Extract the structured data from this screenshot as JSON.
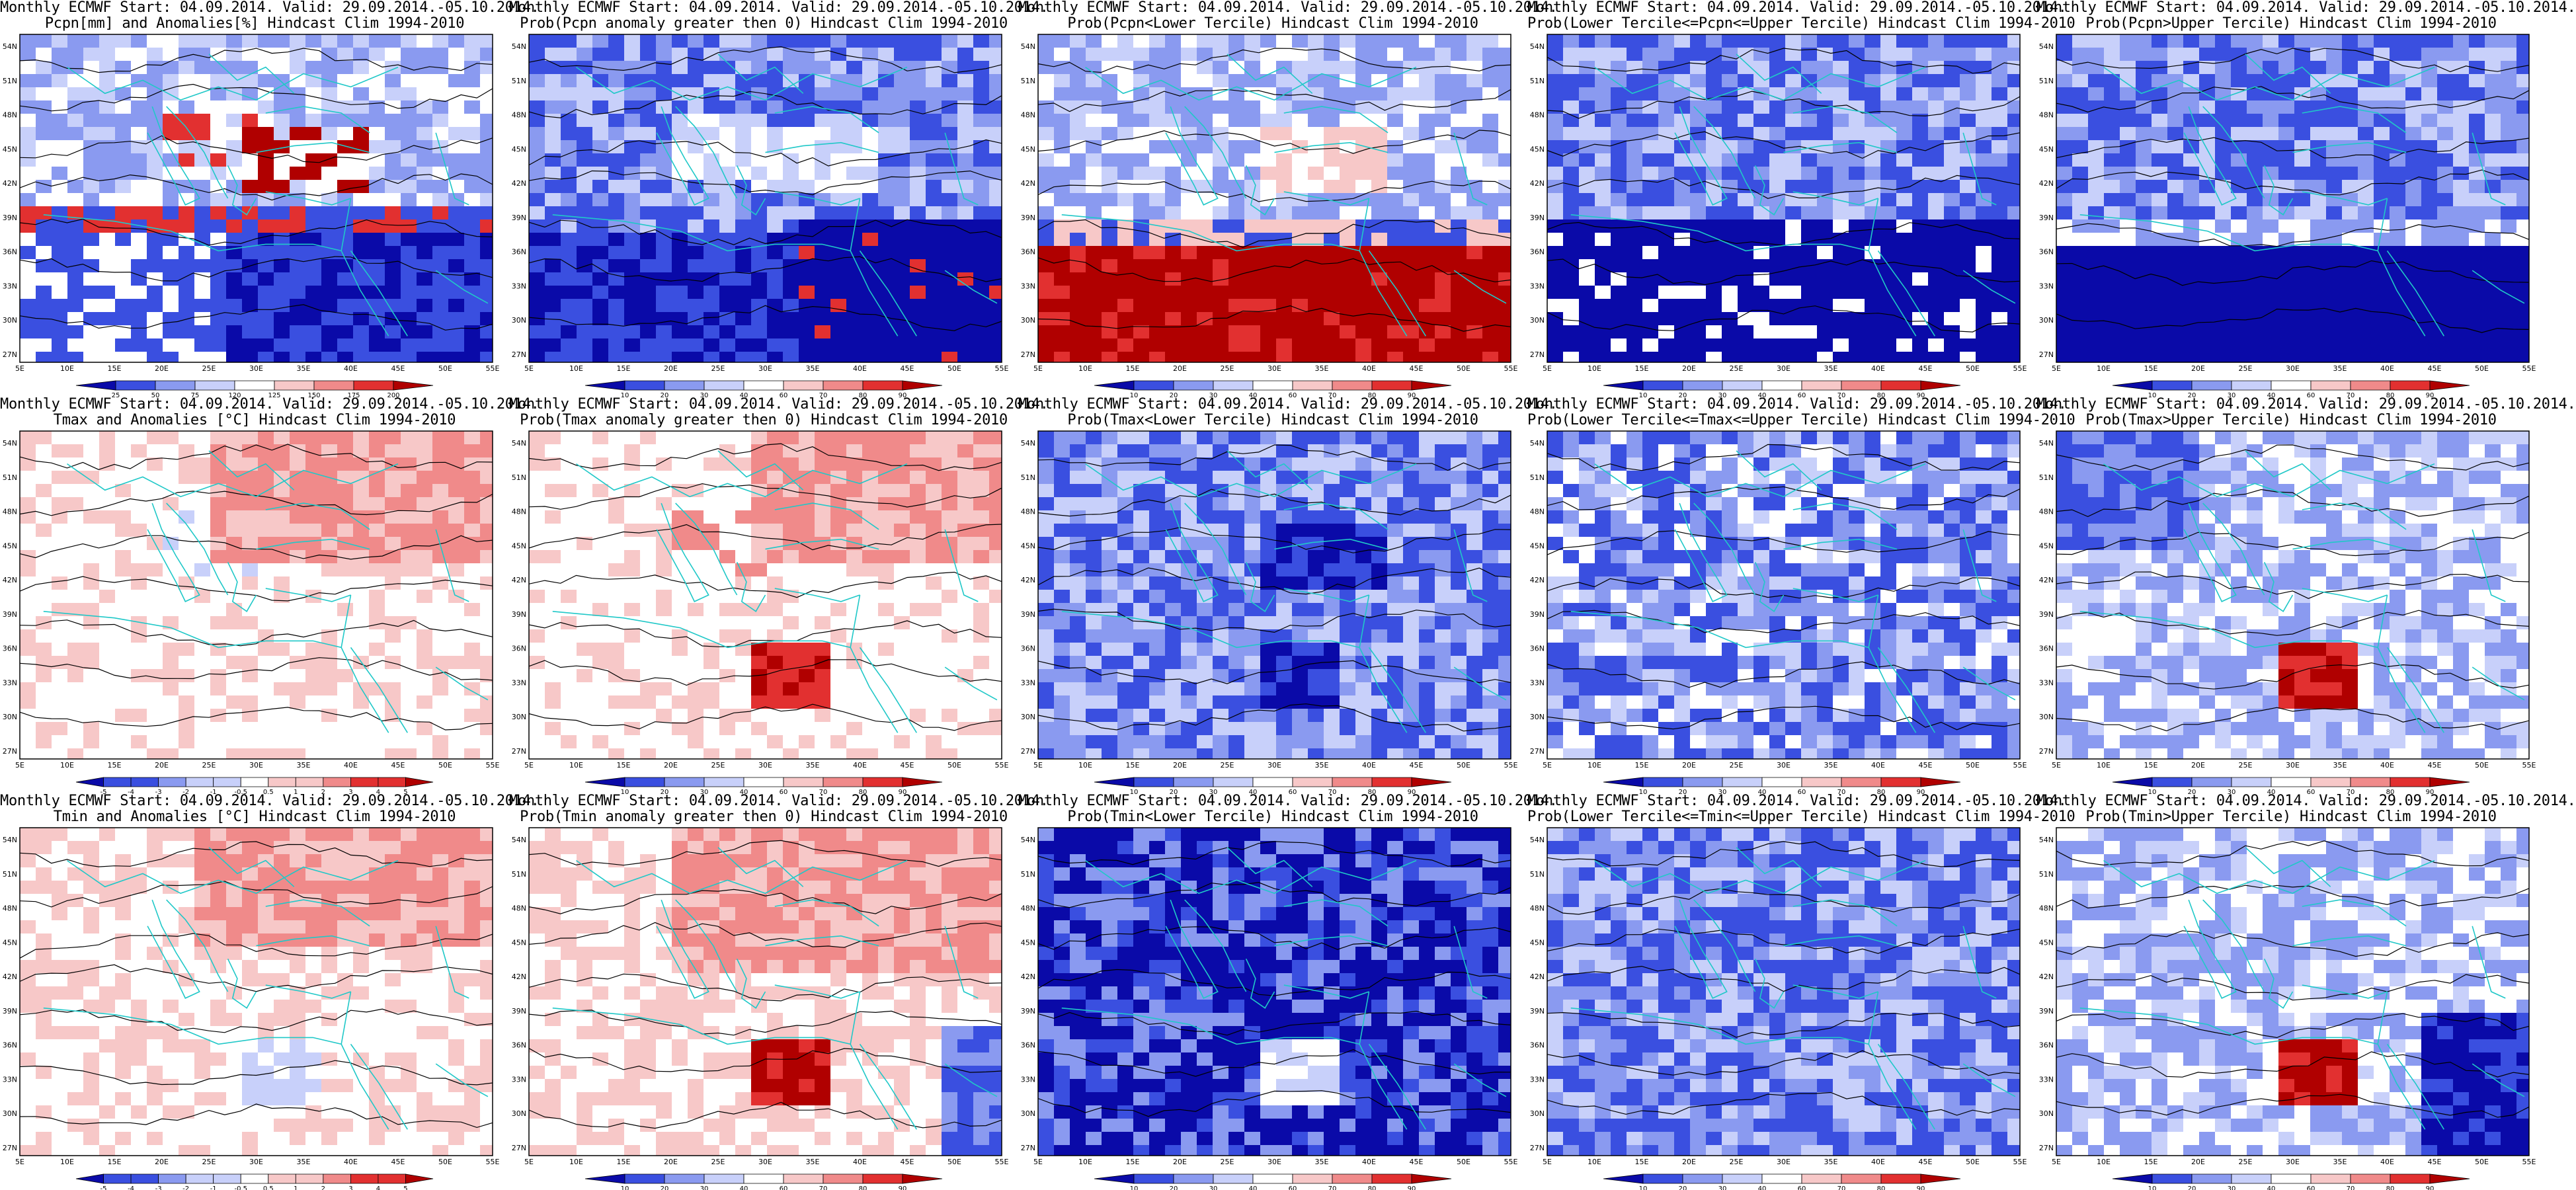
{
  "lat_ticks": [
    "54N",
    "51N",
    "48N",
    "45N",
    "42N",
    "39N",
    "36N",
    "33N",
    "30N",
    "27N"
  ],
  "lon_ticks": [
    "5E",
    "10E",
    "15E",
    "20E",
    "25E",
    "30E",
    "35E",
    "40E",
    "45E",
    "50E",
    "55E"
  ],
  "colorbars": {
    "pcpn_anom": [
      "25",
      "50",
      "75",
      "120",
      "125",
      "150",
      "175",
      "200"
    ],
    "prob": [
      "10",
      "20",
      "30",
      "40",
      "60",
      "70",
      "80",
      "90"
    ],
    "temp_anom": [
      "-5",
      "-4",
      "-3",
      "-2",
      "-1",
      "-0.5",
      "0.5",
      "1",
      "2",
      "3",
      "4",
      "5"
    ]
  },
  "palettes": {
    "blue_dark": "#0a0aa8",
    "blue_mid": "#3a4fe0",
    "blue_light": "#8a9af0",
    "blue_pale": "#c8d0fa",
    "white": "#ffffff",
    "red_pale": "#f7c8c8",
    "red_light": "#f08a8a",
    "red_mid": "#e23030",
    "red_dark": "#b00000",
    "coast": "#20c8c8",
    "contour": "#000000"
  },
  "panels": [
    {
      "title1": "Monthly ECMWF Start: 04.09.2014. Valid: 29.09.2014.-05.10.2014.",
      "title2": "Pcpn[mm] and Anomalies[%] Hindcast Clim 1994-2010",
      "scheme": "pcpn_anom",
      "colorbar": "pcpn_anom"
    },
    {
      "title1": "Monthly ECMWF Start: 04.09.2014. Valid: 29.09.2014.-05.10.2014.",
      "title2": "Prob(Pcpn anomaly greater then 0) Hindcast Clim 1994-2010",
      "scheme": "pcpn_prob_pos",
      "colorbar": "prob"
    },
    {
      "title1": "Monthly ECMWF Start: 04.09.2014. Valid: 29.09.2014.-05.10.2014.",
      "title2": "Prob(Pcpn<Lower Tercile) Hindcast Clim 1994-2010",
      "scheme": "pcpn_lower",
      "colorbar": "prob"
    },
    {
      "title1": "Monthly ECMWF Start: 04.09.2014. Valid: 29.09.2014.-05.10.2014.",
      "title2": "Prob(Lower Tercile<=Pcpn<=Upper Tercile) Hindcast Clim 1994-2010",
      "scheme": "pcpn_middle",
      "colorbar": "prob"
    },
    {
      "title1": "Monthly ECMWF Start: 04.09.2014. Valid: 29.09.2014.-05.10.2014.",
      "title2": "Prob(Pcpn>Upper Tercile) Hindcast Clim 1994-2010",
      "scheme": "pcpn_upper",
      "colorbar": "prob"
    },
    {
      "title1": "Monthly ECMWF Start: 04.09.2014. Valid: 29.09.2014.-05.10.2014.",
      "title2": "Tmax and Anomalies [°C] Hindcast Clim 1994-2010",
      "scheme": "tmax_anom",
      "colorbar": "temp_anom"
    },
    {
      "title1": "Monthly ECMWF Start: 04.09.2014. Valid: 29.09.2014.-05.10.2014.",
      "title2": "Prob(Tmax anomaly greater then 0) Hindcast Clim 1994-2010",
      "scheme": "tmax_prob_pos",
      "colorbar": "prob"
    },
    {
      "title1": "Monthly ECMWF Start: 04.09.2014. Valid: 29.09.2014.-05.10.2014.",
      "title2": "Prob(Tmax<Lower Tercile) Hindcast Clim 1994-2010",
      "scheme": "tmax_lower",
      "colorbar": "prob"
    },
    {
      "title1": "Monthly ECMWF Start: 04.09.2014. Valid: 29.09.2014.-05.10.2014.",
      "title2": "Prob(Lower Tercile<=Tmax<=Upper Tercile) Hindcast Clim 1994-2010",
      "scheme": "tmax_middle",
      "colorbar": "prob"
    },
    {
      "title1": "Monthly ECMWF Start: 04.09.2014. Valid: 29.09.2014.-05.10.2014.",
      "title2": "Prob(Tmax>Upper Tercile) Hindcast Clim 1994-2010",
      "scheme": "tmax_upper",
      "colorbar": "prob"
    },
    {
      "title1": "Monthly ECMWF Start: 04.09.2014. Valid: 29.09.2014.-05.10.2014.",
      "title2": "Tmin and Anomalies [°C] Hindcast Clim 1994-2010",
      "scheme": "tmin_anom",
      "colorbar": "temp_anom"
    },
    {
      "title1": "Monthly ECMWF Start: 04.09.2014. Valid: 29.09.2014.-05.10.2014.",
      "title2": "Prob(Tmin anomaly greater then 0) Hindcast Clim 1994-2010",
      "scheme": "tmin_prob_pos",
      "colorbar": "prob"
    },
    {
      "title1": "Monthly ECMWF Start: 04.09.2014. Valid: 29.09.2014.-05.10.2014.",
      "title2": "Prob(Tmin<Lower Tercile) Hindcast Clim 1994-2010",
      "scheme": "tmin_lower",
      "colorbar": "prob"
    },
    {
      "title1": "Monthly ECMWF Start: 04.09.2014. Valid: 29.09.2014.-05.10.2014.",
      "title2": "Prob(Lower Tercile<=Tmin<=Upper Tercile) Hindcast Clim 1994-2010",
      "scheme": "tmin_middle",
      "colorbar": "prob"
    },
    {
      "title1": "Monthly ECMWF Start: 04.09.2014. Valid: 29.09.2014.-05.10.2014.",
      "title2": "Prob(Tmin>Upper Tercile) Hindcast Clim 1994-2010",
      "scheme": "tmin_upper",
      "colorbar": "prob"
    }
  ]
}
